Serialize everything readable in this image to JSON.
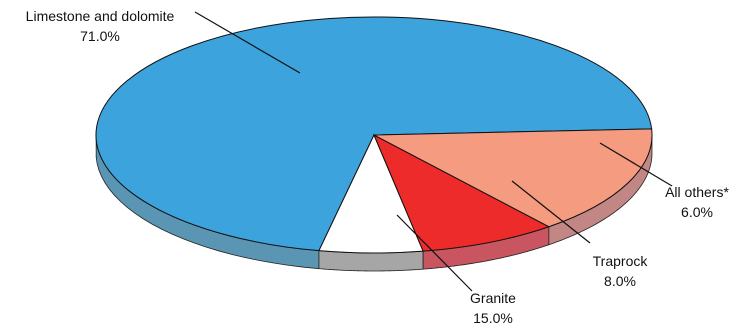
{
  "chart_data": {
    "type": "pie",
    "style": "3d-tilted",
    "slices": [
      {
        "label": "Limestone and dolomite",
        "percent_label": "71.0%",
        "value": 71.0,
        "color": "#3ca3dc",
        "side_color": "#5b95b4"
      },
      {
        "label": "All others*",
        "percent_label": "6.0%",
        "value": 6.0,
        "color": "#ffffff",
        "side_color": "#a6a6a6"
      },
      {
        "label": "Traprock",
        "percent_label": "8.0%",
        "value": 8.0,
        "color": "#ee2b2b",
        "side_color": "#c95560"
      },
      {
        "label": "Granite",
        "percent_label": "15.0%",
        "value": 15.0,
        "color": "#f59b80",
        "side_color": "#c28785"
      }
    ]
  }
}
